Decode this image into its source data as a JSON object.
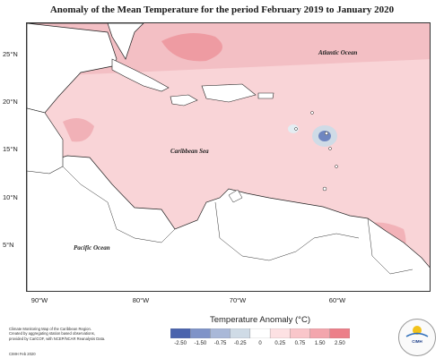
{
  "title": "Anomaly of the Mean Temperature for the period February 2019 to January 2020",
  "map": {
    "lat_labels": [
      "25°N",
      "20°N",
      "15°N",
      "10°N",
      "5°N"
    ],
    "lon_labels": [
      "90°W",
      "80°W",
      "70°W",
      "60°W"
    ],
    "ocean_labels": {
      "atlantic": "Atlantic Ocean",
      "caribbean": "Caribbean Sea",
      "pacific": "Pacific Ocean"
    }
  },
  "legend": {
    "title": "Temperature Anomaly (°C)",
    "ticks": [
      "-2.50",
      "-1.50",
      "-0.75",
      "-0.25",
      "0",
      "0.25",
      "0.75",
      "1.50",
      "2.50"
    ],
    "colors": [
      "#4a63ad",
      "#7f93c8",
      "#a9b8d8",
      "#cfdbe6",
      "#ffffff",
      "#fde1e3",
      "#f9c6ca",
      "#f3a6ad",
      "#ec7f89"
    ]
  },
  "footnote": {
    "lines": [
      "Climate Monitoring Map of the Caribbean Region.",
      "Created by aggregating station based observations,",
      "provided by CariCOF, with NCEP/NCAR Reanalysis Data."
    ],
    "credit": "CIMH Feb 2020"
  },
  "logo": {
    "text": "CIMH"
  }
}
